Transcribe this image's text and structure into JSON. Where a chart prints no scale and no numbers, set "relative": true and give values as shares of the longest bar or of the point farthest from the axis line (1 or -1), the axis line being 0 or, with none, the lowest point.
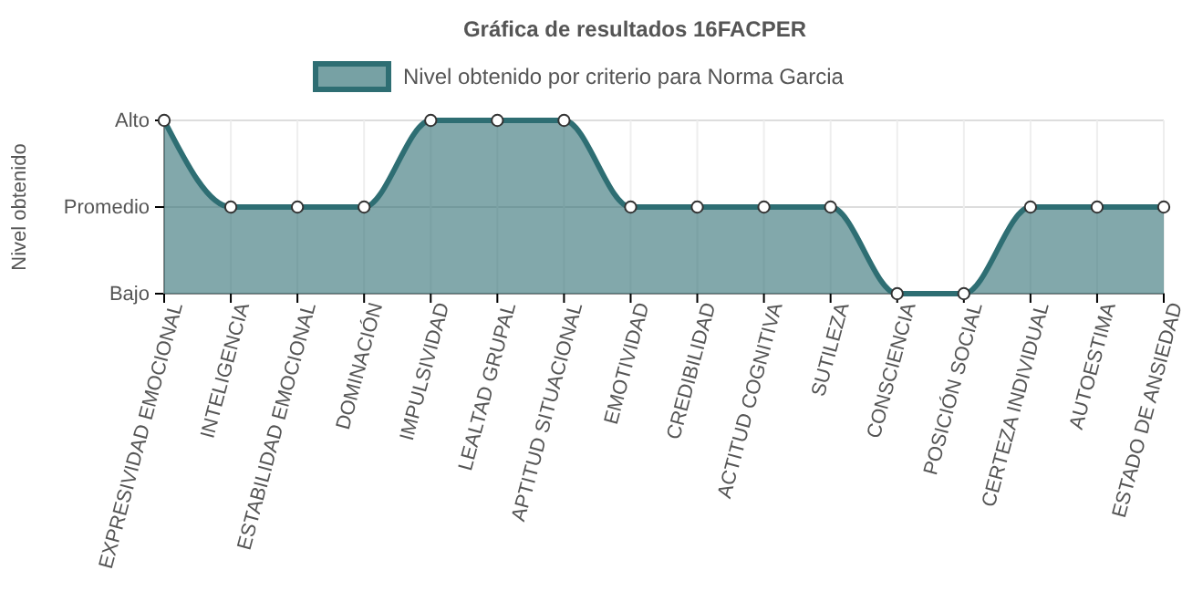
{
  "chart_data": {
    "type": "area",
    "title": "Gráfica de resultados 16FACPER",
    "ylabel": "Nivel obtenido",
    "categories": [
      "EXPRESIVIDAD EMOCIONAL",
      "INTELIGENCIA",
      "ESTABILIDAD EMOCIONAL",
      "DOMINACIÓN",
      "IMPULSIVIDAD",
      "LEALTAD GRUPAL",
      "APTITUD SITUACIONAL",
      "EMOTIVIDAD",
      "CREDIBILIDAD",
      "ACTITUD COGNITIVA",
      "SUTILEZA",
      "CONSCIENCIA",
      "POSICIÓN SOCIAL",
      "CERTEZA INDIVIDUAL",
      "AUTOESTIMA",
      "ESTADO DE ANSIEDAD"
    ],
    "series": [
      {
        "name": "Nivel obtenido por criterio para Norma Garcia",
        "color": "#2e6e73",
        "values": [
          1,
          0.5,
          0.5,
          0.5,
          1,
          1,
          1,
          0.5,
          0.5,
          0.5,
          0.5,
          0,
          0,
          0.5,
          0.5,
          0.5
        ]
      }
    ],
    "relative": true,
    "annotations": [
      "Bajo",
      "Promedio",
      "Alto"
    ],
    "ref_lines": [
      {
        "axis": "y",
        "value": 0.5,
        "color": "#dddddd"
      },
      {
        "axis": "y",
        "value": 1,
        "color": "#dddddd"
      }
    ],
    "grid": "x",
    "legend": "top",
    "marker": "circle"
  }
}
